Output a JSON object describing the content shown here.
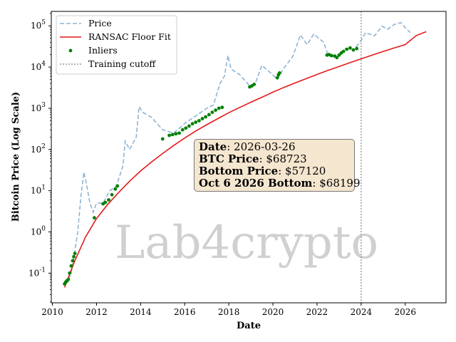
{
  "chart_data": {
    "type": "line",
    "title": "",
    "xlabel": "Date",
    "ylabel": "Bitcoin Price (Log Scale)",
    "xlim": [
      2009.95,
      2027.85
    ],
    "ylim_log10": [
      -1.72,
      5.35
    ],
    "yscale": "log",
    "grid": false,
    "legend_position": "top-left",
    "x_ticks": [
      2010,
      2012,
      2014,
      2016,
      2018,
      2020,
      2022,
      2024,
      2026
    ],
    "x_tick_labels": [
      "2010",
      "2012",
      "2014",
      "2016",
      "2018",
      "2020",
      "2022",
      "2024",
      "2026"
    ],
    "y_ticks": [
      -1,
      0,
      1,
      2,
      3,
      4,
      5
    ],
    "y_tick_labels": [
      "10^-1",
      "10^0",
      "10^1",
      "10^2",
      "10^3",
      "10^4",
      "10^5"
    ],
    "legend": {
      "price": "Price",
      "fit": "RANSAC Floor Fit",
      "inliers": "Inliers",
      "cutoff": "Training cutoff"
    },
    "colors": {
      "price": "#8fb4d4",
      "fit": "#e31a1c",
      "inliers": "#008000",
      "cutoff": "#999999"
    },
    "price_series": {
      "name": "Price",
      "x": [
        2010.55,
        2010.7,
        2010.85,
        2011.0,
        2011.15,
        2011.3,
        2011.43,
        2011.55,
        2011.7,
        2011.85,
        2012.0,
        2012.3,
        2012.6,
        2012.9,
        2013.2,
        2013.3,
        2013.5,
        2013.8,
        2013.93,
        2014.1,
        2014.5,
        2015.0,
        2015.5,
        2016.0,
        2016.5,
        2017.0,
        2017.3,
        2017.6,
        2017.8,
        2017.96,
        2018.1,
        2018.5,
        2018.95,
        2019.2,
        2019.5,
        2019.9,
        2020.2,
        2020.5,
        2020.9,
        2021.25,
        2021.55,
        2021.85,
        2022.3,
        2022.5,
        2022.9,
        2023.3,
        2023.7,
        2024.0,
        2024.2,
        2024.6,
        2024.95,
        2025.2,
        2025.5,
        2025.8,
        2026.0,
        2026.23
      ],
      "y": [
        0.06,
        0.06,
        0.1,
        0.3,
        1.0,
        8.0,
        28.0,
        14.0,
        5.0,
        3.0,
        5.0,
        5.0,
        10.0,
        13.0,
        40.0,
        160.0,
        100.0,
        200.0,
        1100.0,
        800.0,
        600.0,
        300.0,
        250.0,
        430.0,
        650.0,
        1000.0,
        1200.0,
        4000.0,
        6000.0,
        19000.0,
        9000.0,
        6500.0,
        3500.0,
        4000.0,
        11000.0,
        7200.0,
        5000.0,
        9500.0,
        18000.0,
        60000.0,
        35000.0,
        63000.0,
        40000.0,
        20000.0,
        16500.0,
        28000.0,
        27000.0,
        44000.0,
        68000.0,
        57000.0,
        98000.0,
        82000.0,
        108000.0,
        120000.0,
        90000.0,
        68723.0
      ]
    },
    "inliers": {
      "name": "Inliers",
      "x": [
        2010.55,
        2010.6,
        2010.65,
        2010.72,
        2010.78,
        2010.85,
        2010.92,
        2010.97,
        2011.02,
        2011.9,
        2012.3,
        2012.4,
        2012.55,
        2012.7,
        2012.85,
        2012.95,
        2015.0,
        2015.3,
        2015.45,
        2015.6,
        2015.75,
        2015.9,
        2016.05,
        2016.2,
        2016.35,
        2016.5,
        2016.65,
        2016.8,
        2016.95,
        2017.1,
        2017.25,
        2017.4,
        2017.55,
        2017.7,
        2018.95,
        2019.05,
        2019.15,
        2020.2,
        2020.25,
        2020.3,
        2022.45,
        2022.55,
        2022.65,
        2022.8,
        2022.9,
        2023.0,
        2023.1,
        2023.2,
        2023.35,
        2023.5,
        2023.65,
        2023.8
      ],
      "y": [
        0.055,
        0.06,
        0.065,
        0.07,
        0.1,
        0.15,
        0.2,
        0.25,
        0.3,
        2.2,
        4.8,
        5.2,
        6.0,
        8.0,
        11.0,
        13.0,
        180.0,
        220.0,
        230.0,
        240.0,
        250.0,
        300.0,
        330.0,
        370.0,
        420.0,
        460.0,
        500.0,
        560.0,
        620.0,
        700.0,
        800.0,
        900.0,
        1000.0,
        1050.0,
        3300.0,
        3500.0,
        3800.0,
        5500.0,
        6500.0,
        7200.0,
        19500.0,
        20000.0,
        19000.0,
        18500.0,
        17000.0,
        19500.0,
        22000.0,
        24000.0,
        27000.0,
        29000.0,
        26000.0,
        28000.0
      ]
    },
    "ransac_fit": {
      "name": "RANSAC Floor Fit",
      "x": [
        2010.55,
        2011.0,
        2011.5,
        2012.0,
        2012.5,
        2013.0,
        2013.5,
        2014.0,
        2014.5,
        2015.0,
        2015.5,
        2016.0,
        2016.5,
        2017.0,
        2017.5,
        2018.0,
        2018.5,
        2019.0,
        2019.5,
        2020.0,
        2020.5,
        2021.0,
        2021.5,
        2022.0,
        2022.5,
        2023.0,
        2023.5,
        2024.0,
        2024.5,
        2025.0,
        2025.5,
        2026.0,
        2026.5,
        2026.95
      ],
      "y": [
        0.045,
        0.19,
        0.75,
        2.1,
        4.6,
        9.0,
        17.0,
        30.0,
        50.0,
        80.0,
        125.0,
        190.0,
        280.0,
        400.0,
        560.0,
        780.0,
        1050.0,
        1400.0,
        1850.0,
        2450.0,
        3200.0,
        4100.0,
        5200.0,
        6600.0,
        8300.0,
        10300.0,
        12800.0,
        15800.0,
        19400.0,
        23800.0,
        29000.0,
        35000.0,
        58000.0,
        72000.0
      ]
    },
    "training_cutoff": {
      "name": "Training cutoff",
      "x": 2024.0
    },
    "annotation": {
      "date_label": "Date",
      "date_value": "2026-03-26",
      "btc_label": "BTC Price",
      "btc_value": "$68723",
      "bottom_label": "Bottom Price",
      "bottom_value": "$57120",
      "oct_label": "Oct 6 2026 Bottom",
      "oct_value": "$68199"
    },
    "watermark": "Lab4crypto"
  }
}
